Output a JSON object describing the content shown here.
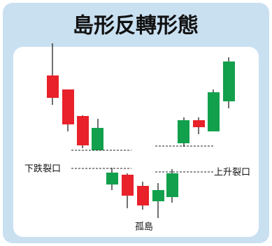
{
  "title": "島形反轉形態",
  "labels": {
    "down_gap": "下跌裂口",
    "up_gap": "上升裂口",
    "island": "孤島"
  }
}
